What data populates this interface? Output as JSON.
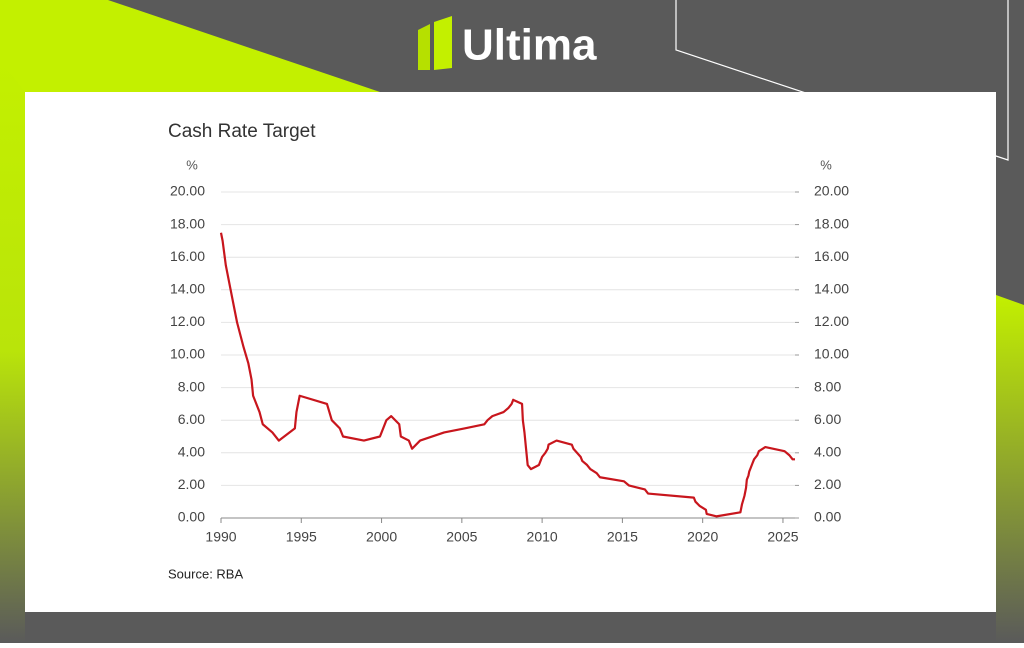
{
  "brand": "Ultima",
  "chart_data": {
    "type": "line",
    "title": "Cash Rate Target",
    "y_unit": "%",
    "y2_unit": "%",
    "source": "Source: RBA",
    "xlim": [
      1990,
      2025.75
    ],
    "xticks": [
      1990,
      1995,
      2000,
      2005,
      2010,
      2015,
      2020,
      2025
    ],
    "ylim": [
      0,
      20
    ],
    "yticks": [
      {
        "value": 0,
        "label": "0.00"
      },
      {
        "value": 2,
        "label": "2.00"
      },
      {
        "value": 4,
        "label": "4.00"
      },
      {
        "value": 6,
        "label": "6.00"
      },
      {
        "value": 8,
        "label": "8.00"
      },
      {
        "value": 10,
        "label": "10.00"
      },
      {
        "value": 12,
        "label": "12.00"
      },
      {
        "value": 14,
        "label": "14.00"
      },
      {
        "value": 16,
        "label": "16.00"
      },
      {
        "value": 18,
        "label": "18.00"
      },
      {
        "value": 20,
        "label": "20.00"
      }
    ],
    "y2lim": [
      0,
      20
    ],
    "y2ticks": [
      {
        "value": 0,
        "label": "0.00"
      },
      {
        "value": 2,
        "label": "2.00"
      },
      {
        "value": 4,
        "label": "4.00"
      },
      {
        "value": 6,
        "label": "6.00"
      },
      {
        "value": 8,
        "label": "8.00"
      },
      {
        "value": 10,
        "label": "10.00"
      },
      {
        "value": 12,
        "label": "12.00"
      },
      {
        "value": 14,
        "label": "14.00"
      },
      {
        "value": 16,
        "label": "16.00"
      },
      {
        "value": 18,
        "label": "18.00"
      },
      {
        "value": 20,
        "label": "20.00"
      }
    ],
    "grid": true,
    "series": [
      {
        "name": "Cash Rate Target",
        "color": "#c8161d",
        "x": [
          1990.0,
          1990.1,
          1990.3,
          1990.6,
          1990.8,
          1991.0,
          1991.4,
          1991.7,
          1991.9,
          1992.0,
          1992.4,
          1992.6,
          1993.2,
          1993.6,
          1994.6,
          1994.7,
          1994.9,
          1996.6,
          1996.9,
          1997.4,
          1997.6,
          1998.9,
          1999.9,
          2000.1,
          2000.3,
          2000.6,
          2001.1,
          2001.2,
          2001.7,
          2001.9,
          2002.4,
          2003.9,
          2005.2,
          2006.4,
          2006.6,
          2006.9,
          2007.6,
          2007.9,
          2008.1,
          2008.2,
          2008.75,
          2008.8,
          2008.9,
          2009.0,
          2009.1,
          2009.3,
          2009.8,
          2009.9,
          2010.0,
          2010.2,
          2010.35,
          2010.4,
          2010.9,
          2011.85,
          2011.95,
          2012.4,
          2012.5,
          2012.8,
          2013.0,
          2013.4,
          2013.6,
          2015.1,
          2015.4,
          2016.4,
          2016.6,
          2019.45,
          2019.55,
          2019.8,
          2020.2,
          2020.25,
          2020.85,
          2022.35,
          2022.45,
          2022.6,
          2022.7,
          2022.75,
          2022.85,
          2022.9,
          2023.0,
          2023.1,
          2023.2,
          2023.4,
          2023.5,
          2023.9,
          2025.1,
          2025.4,
          2025.6,
          2025.75
        ],
        "values": [
          17.5,
          17.0,
          15.5,
          14.0,
          13.0,
          12.0,
          10.5,
          9.5,
          8.5,
          7.5,
          6.5,
          5.75,
          5.25,
          4.75,
          5.5,
          6.5,
          7.5,
          7.0,
          6.0,
          5.5,
          5.0,
          4.75,
          5.0,
          5.5,
          6.0,
          6.25,
          5.75,
          5.0,
          4.75,
          4.25,
          4.75,
          5.25,
          5.5,
          5.75,
          6.0,
          6.25,
          6.5,
          6.75,
          7.0,
          7.25,
          7.0,
          6.0,
          5.25,
          4.25,
          3.25,
          3.0,
          3.25,
          3.5,
          3.75,
          4.0,
          4.25,
          4.5,
          4.75,
          4.5,
          4.25,
          3.75,
          3.5,
          3.25,
          3.0,
          2.75,
          2.5,
          2.25,
          2.0,
          1.75,
          1.5,
          1.25,
          1.0,
          0.75,
          0.5,
          0.25,
          0.1,
          0.35,
          0.85,
          1.35,
          1.85,
          2.35,
          2.6,
          2.85,
          3.1,
          3.35,
          3.6,
          3.85,
          4.1,
          4.35,
          4.1,
          3.85,
          3.6,
          3.6
        ]
      }
    ]
  }
}
